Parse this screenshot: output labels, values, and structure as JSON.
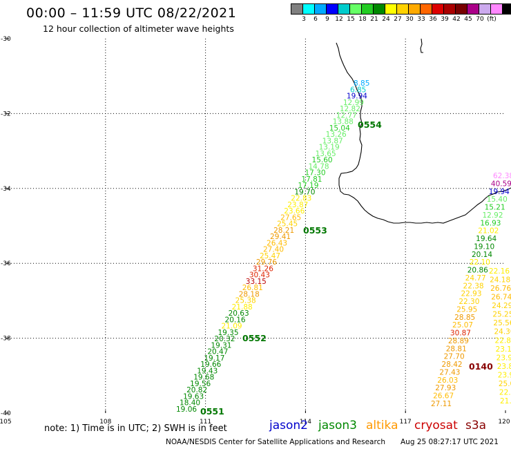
{
  "title": "00:00 – 11:59 UTC 08/22/2021",
  "subtitle": "12 hour collection of altimeter wave heights",
  "colorbar": {
    "colors": [
      "#808080",
      "#00ffff",
      "#00aaff",
      "#0000ff",
      "#00cccc",
      "#66ff66",
      "#22cc22",
      "#008800",
      "#ffff00",
      "#ffd200",
      "#ffaa00",
      "#ff6600",
      "#dd0000",
      "#aa0000",
      "#770000",
      "#aa0088",
      "#ccaaee",
      "#ff88ff",
      "#000000"
    ],
    "labels": [
      "3",
      "6",
      "9",
      "12",
      "15",
      "18",
      "21",
      "24",
      "27",
      "30",
      "33",
      "36",
      "39",
      "42",
      "45",
      "70",
      "(ft)"
    ]
  },
  "axes": {
    "lat_labels": [
      "-30",
      "-32",
      "-34",
      "-36",
      "-38",
      "-40"
    ],
    "lon_labels": [
      "105",
      "108",
      "111",
      "114",
      "117",
      "120"
    ]
  },
  "passes": [
    {
      "label": "0554",
      "color": "#007700"
    },
    {
      "label": "0553",
      "color": "#007700"
    },
    {
      "label": "0552",
      "color": "#007700"
    },
    {
      "label": "0551",
      "color": "#007700"
    },
    {
      "label": "0140",
      "color": "#880000"
    }
  ],
  "tracks": {
    "jason3_main": [
      {
        "v": "8.85",
        "c": "#00aaff"
      },
      {
        "v": "6.85",
        "c": "#00cccc"
      },
      {
        "v": "19.94",
        "c": "#0000cc"
      },
      {
        "v": "12.99",
        "c": "#66ee66"
      },
      {
        "v": "12.82",
        "c": "#66ee66"
      },
      {
        "v": "12.77",
        "c": "#66ee66"
      },
      {
        "v": "13.88",
        "c": "#66ee66"
      },
      {
        "v": "15.04",
        "c": "#22cc22"
      },
      {
        "v": "13.26",
        "c": "#66ee66"
      },
      {
        "v": "13.87",
        "c": "#66ee66"
      },
      {
        "v": "13.19",
        "c": "#66ee66"
      },
      {
        "v": "13.65",
        "c": "#66ee66"
      },
      {
        "v": "15.60",
        "c": "#22cc22"
      },
      {
        "v": "14.78",
        "c": "#66ee66"
      },
      {
        "v": "17.30",
        "c": "#22cc22"
      },
      {
        "v": "17.81",
        "c": "#22cc22"
      },
      {
        "v": "17.19",
        "c": "#22cc22"
      },
      {
        "v": "19.70",
        "c": "#008800"
      },
      {
        "v": "22.83",
        "c": "#ffee00"
      },
      {
        "v": "23.87",
        "c": "#ffee00"
      },
      {
        "v": "23.66",
        "c": "#ffee00"
      },
      {
        "v": "27.65",
        "c": "#ffbb00"
      },
      {
        "v": "25.45",
        "c": "#ffd200"
      },
      {
        "v": "28.21",
        "c": "#ee9900"
      },
      {
        "v": "29.41",
        "c": "#ee9900"
      },
      {
        "v": "26.43",
        "c": "#ffbb00"
      },
      {
        "v": "27.40",
        "c": "#ffbb00"
      },
      {
        "v": "25.47",
        "c": "#ffd200"
      },
      {
        "v": "29.76",
        "c": "#ee9900"
      },
      {
        "v": "31.26",
        "c": "#dd2200"
      },
      {
        "v": "30.43",
        "c": "#dd2200"
      },
      {
        "v": "33.15",
        "c": "#bb0000"
      },
      {
        "v": "26.81",
        "c": "#ffbb00"
      },
      {
        "v": "28.18",
        "c": "#ee9900"
      },
      {
        "v": "25.38",
        "c": "#ffd200"
      },
      {
        "v": "21.88",
        "c": "#ffee00"
      },
      {
        "v": "20.63",
        "c": "#008800"
      },
      {
        "v": "20.16",
        "c": "#008800"
      },
      {
        "v": "21.09",
        "c": "#ffee00"
      },
      {
        "v": "19.35",
        "c": "#008800"
      },
      {
        "v": "20.32",
        "c": "#008800"
      },
      {
        "v": "19.31",
        "c": "#008800"
      },
      {
        "v": "20.47",
        "c": "#008800"
      },
      {
        "v": "19.17",
        "c": "#008800"
      },
      {
        "v": "19.66",
        "c": "#008800"
      },
      {
        "v": "19.43",
        "c": "#008800"
      },
      {
        "v": "19.68",
        "c": "#008800"
      },
      {
        "v": "19.56",
        "c": "#008800"
      },
      {
        "v": "20.82",
        "c": "#008800"
      },
      {
        "v": "19.63",
        "c": "#008800"
      },
      {
        "v": "18.40",
        "c": "#008800"
      },
      {
        "v": "19.06",
        "c": "#008800"
      }
    ],
    "altika_east": [
      {
        "v": "62.38",
        "c": "#ff88ff"
      },
      {
        "v": "40.59",
        "c": "#aa0088"
      },
      {
        "v": "19.94",
        "c": "#0000cc"
      },
      {
        "v": "15.40",
        "c": "#66ee66"
      },
      {
        "v": "15.21",
        "c": "#22cc22"
      },
      {
        "v": "12.92",
        "c": "#66ee66"
      },
      {
        "v": "16.93",
        "c": "#22cc22"
      },
      {
        "v": "21.02",
        "c": "#ffee00"
      },
      {
        "v": "19.64",
        "c": "#008800"
      },
      {
        "v": "19.10",
        "c": "#008800"
      },
      {
        "v": "20.14",
        "c": "#008800"
      },
      {
        "v": "22.10",
        "c": "#ffee00"
      },
      {
        "v": "20.86",
        "c": "#008800"
      },
      {
        "v": "24.77",
        "c": "#ffd200"
      },
      {
        "v": "22.38",
        "c": "#ffd200"
      },
      {
        "v": "22.93",
        "c": "#ffd200"
      },
      {
        "v": "22.30",
        "c": "#ffd200"
      },
      {
        "v": "25.95",
        "c": "#ffbb00"
      },
      {
        "v": "28.85",
        "c": "#ee9900"
      },
      {
        "v": "25.07",
        "c": "#ffbb00"
      },
      {
        "v": "30.87",
        "c": "#dd2200"
      },
      {
        "v": "28.89",
        "c": "#ee9900"
      },
      {
        "v": "28.81",
        "c": "#ee9900"
      },
      {
        "v": "27.70",
        "c": "#ee9900"
      },
      {
        "v": "28.42",
        "c": "#ee9900"
      },
      {
        "v": "27.43",
        "c": "#ee9900"
      },
      {
        "v": "26.03",
        "c": "#ffbb00"
      },
      {
        "v": "27.93",
        "c": "#ee9900"
      },
      {
        "v": "26.67",
        "c": "#ffbb00"
      },
      {
        "v": "27.11",
        "c": "#ee9900"
      }
    ],
    "edge_east": [
      {
        "v": "22.16",
        "c": "#ffee00"
      },
      {
        "v": "24.18",
        "c": "#ffd200"
      },
      {
        "v": "26.76",
        "c": "#ffbb00"
      },
      {
        "v": "26.74",
        "c": "#ffbb00"
      },
      {
        "v": "24.29",
        "c": "#ffd200"
      },
      {
        "v": "25.25",
        "c": "#ffd200"
      },
      {
        "v": "25.56",
        "c": "#ffd200"
      },
      {
        "v": "24.30",
        "c": "#ffd200"
      },
      {
        "v": "22.89",
        "c": "#ffee00"
      },
      {
        "v": "23.14",
        "c": "#ffee00"
      },
      {
        "v": "23.95",
        "c": "#ffee00"
      },
      {
        "v": "23.82",
        "c": "#ffee00"
      },
      {
        "v": "23.99",
        "c": "#ffee00"
      },
      {
        "v": "25.03",
        "c": "#ffd200"
      },
      {
        "v": "22.44",
        "c": "#ffee00"
      },
      {
        "v": "21.06",
        "c": "#ffee00"
      }
    ]
  },
  "footer": {
    "note": "note: 1) Time is in UTC; 2) SWH is in feet",
    "missions": [
      {
        "label": "jason2",
        "color": "#0000cc"
      },
      {
        "label": "jason3",
        "color": "#008800"
      },
      {
        "label": "altika",
        "color": "#ff9900"
      },
      {
        "label": "cryosat",
        "color": "#cc0000"
      },
      {
        "label": "s3a",
        "color": "#880000"
      }
    ],
    "credit": "NOAA/NESDIS Center for Satellite Applications and Research",
    "timestamp": "Aug 25 08:27:17 UTC 2021"
  }
}
